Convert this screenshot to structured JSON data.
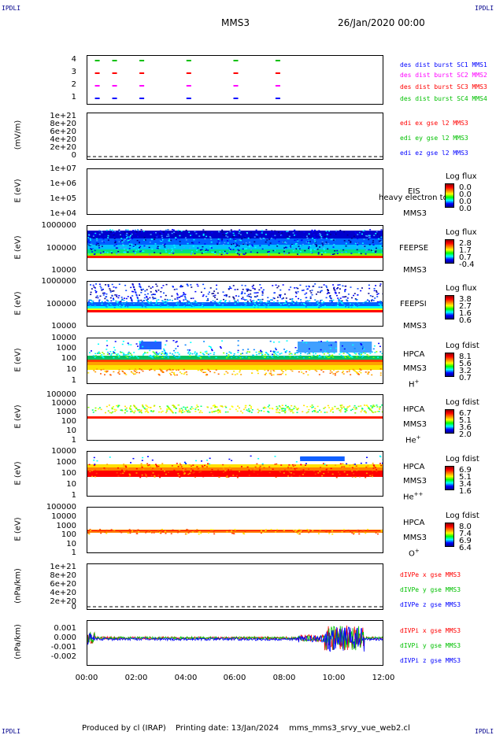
{
  "corner_labels": {
    "tl": "IPDLI",
    "tr": "IPDLI",
    "bl": "IPDLI",
    "br": "IPDLI"
  },
  "header": {
    "mission": "MMS3",
    "date": "26/Jan/2020 00:00"
  },
  "footer": {
    "produced": "Produced by cl (IRAP)",
    "printing": "Printing date: 13/Jan/2024",
    "file": "mms_mms3_srvy_vue_web2.cl"
  },
  "colors": {
    "blue": "#0000ff",
    "red": "#ff0000",
    "green": "#00c000",
    "magenta": "#ff00ff",
    "black": "#000000"
  },
  "chart_data": [
    {
      "id": "p1",
      "type": "scatter",
      "ylabel": "",
      "yticks": [
        "4",
        "3",
        "2",
        "1"
      ],
      "legend": [
        "des dist burst SC1 MMS1",
        "des dist burst SC2 MMS2",
        "des dist burst SC3 MMS3",
        "des dist burst SC4 MMS4"
      ],
      "series": [
        {
          "name": "des dist burst SC1 MMS1",
          "y": 1,
          "x": [
            0.4,
            1.1,
            2.2,
            4.1,
            6.0,
            7.7
          ]
        },
        {
          "name": "des dist burst SC2 MMS2",
          "y": 2,
          "x": [
            0.4,
            1.1,
            2.2,
            4.1,
            6.0,
            7.7
          ]
        },
        {
          "name": "des dist burst SC3 MMS3",
          "y": 3,
          "x": [
            0.4,
            1.1,
            2.2,
            4.1,
            6.0,
            7.7
          ]
        },
        {
          "name": "des dist burst SC4 MMS4",
          "y": 4,
          "x": [
            0.4,
            1.1,
            2.2,
            4.1,
            6.0,
            7.7
          ]
        }
      ]
    },
    {
      "id": "p2",
      "type": "line",
      "ylabel": "(mV/m)",
      "yticks": [
        "1e+21",
        "8e+20",
        "6e+20",
        "4e+20",
        "2e+20",
        "0"
      ],
      "legend": [
        "edi ex gse l2 MMS3",
        "edi ey gse l2 MMS3",
        "edi ez gse l2 MMS3"
      ]
    },
    {
      "id": "p3",
      "type": "heatmap",
      "ylabel": "E (eV)",
      "yticks": [
        "1e+07",
        "1e+06",
        "1e+05",
        "1e+04"
      ],
      "instrument": "EIS",
      "spacecraft": "MMS3",
      "overlay": "heavy electron to",
      "colorbar": {
        "title": "Log flux",
        "values": [
          "0.0",
          "0.0",
          "0.0",
          "0.0"
        ]
      }
    },
    {
      "id": "p4",
      "type": "heatmap",
      "ylabel": "E (eV)",
      "yticks": [
        "1000000",
        "100000",
        "10000"
      ],
      "instrument": "FEEPSE",
      "spacecraft": "MMS3",
      "colorbar": {
        "title": "Log flux",
        "values": [
          "2.8",
          "1.7",
          "0.7",
          "-0.4"
        ]
      }
    },
    {
      "id": "p5",
      "type": "heatmap",
      "ylabel": "E (eV)",
      "yticks": [
        "1000000",
        "100000",
        "10000"
      ],
      "instrument": "FEEPSI",
      "spacecraft": "MMS3",
      "colorbar": {
        "title": "Log flux",
        "values": [
          "3.8",
          "2.7",
          "1.6",
          "0.6"
        ]
      }
    },
    {
      "id": "p6",
      "type": "heatmap",
      "ylabel": "E (eV)",
      "yticks": [
        "10000",
        "1000",
        "100",
        "10",
        "1"
      ],
      "instrument": "HPCA",
      "spacecraft": "MMS3",
      "species": "H",
      "species_sup": "+",
      "colorbar": {
        "title": "Log fdist",
        "values": [
          "8.1",
          "5.6",
          "3.2",
          "0.7"
        ]
      }
    },
    {
      "id": "p7",
      "type": "heatmap",
      "ylabel": "E (eV)",
      "yticks": [
        "100000",
        "10000",
        "1000",
        "100",
        "10",
        "1"
      ],
      "instrument": "HPCA",
      "spacecraft": "MMS3",
      "species": "He",
      "species_sup": "+",
      "colorbar": {
        "title": "Log fdist",
        "values": [
          "6.7",
          "5.1",
          "3.6",
          "2.0"
        ]
      }
    },
    {
      "id": "p8",
      "type": "heatmap",
      "ylabel": "E (eV)",
      "yticks": [
        "10000",
        "1000",
        "100",
        "10",
        "1"
      ],
      "instrument": "HPCA",
      "spacecraft": "MMS3",
      "species": "He",
      "species_sup": "++",
      "colorbar": {
        "title": "Log fdist",
        "values": [
          "6.9",
          "5.1",
          "3.4",
          "1.6"
        ]
      }
    },
    {
      "id": "p9",
      "type": "heatmap",
      "ylabel": "E (eV)",
      "yticks": [
        "100000",
        "10000",
        "1000",
        "100",
        "10",
        "1"
      ],
      "instrument": "HPCA",
      "spacecraft": "MMS3",
      "species": "O",
      "species_sup": "+",
      "colorbar": {
        "title": "Log fdist",
        "values": [
          "8.0",
          "7.4",
          "6.9",
          "6.4"
        ]
      }
    },
    {
      "id": "p10",
      "type": "line",
      "ylabel": "(nPa/km)",
      "yticks": [
        "1e+21",
        "8e+20",
        "6e+20",
        "4e+20",
        "2e+20",
        "0"
      ],
      "legend": [
        "dIVPe x gse MMS3",
        "dIVPe y gse MMS3",
        "dIVPe z gse MMS3"
      ]
    },
    {
      "id": "p11",
      "type": "line",
      "ylabel": "(nPa/km)",
      "yticks": [
        "0.001",
        "0.000",
        "-0.001",
        "-0.002"
      ],
      "legend": [
        "dIVPi x gse MMS3",
        "dIVPi y gse MMS3",
        "dIVPi z gse MMS3"
      ],
      "ylim": [
        -0.0025,
        0.0015
      ]
    }
  ],
  "xaxis": {
    "ticks": [
      "00:00",
      "02:00",
      "04:00",
      "06:00",
      "08:00",
      "10:00",
      "12:00"
    ],
    "range_hours": [
      0,
      12
    ]
  }
}
